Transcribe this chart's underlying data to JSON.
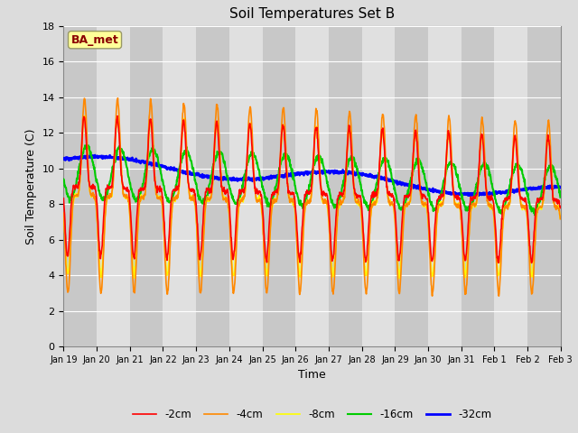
{
  "title": "Soil Temperatures Set B",
  "xlabel": "Time",
  "ylabel": "Soil Temperature (C)",
  "annotation": "BA_met",
  "ylim": [
    0,
    18
  ],
  "yticks": [
    0,
    2,
    4,
    6,
    8,
    10,
    12,
    14,
    16,
    18
  ],
  "series_labels": [
    "-2cm",
    "-4cm",
    "-8cm",
    "-16cm",
    "-32cm"
  ],
  "series_colors": [
    "#FF0000",
    "#FF8800",
    "#FFFF00",
    "#00CC00",
    "#0000FF"
  ],
  "series_linewidths": [
    1.2,
    1.2,
    1.2,
    1.5,
    2.0
  ],
  "bg_color": "#DCDCDC",
  "band_color_dark": "#C8C8C8",
  "band_color_light": "#E0E0E0",
  "grid_color": "#FFFFFF",
  "n_days": 15,
  "points_per_day": 96
}
